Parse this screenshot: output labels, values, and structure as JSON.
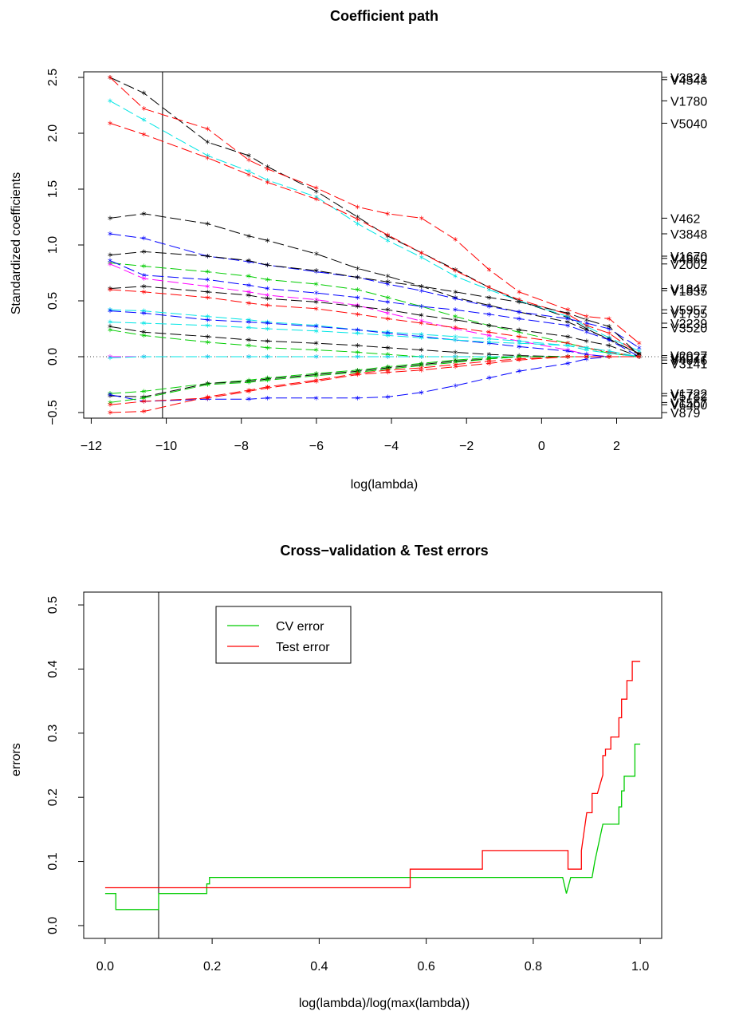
{
  "chart_data": [
    {
      "type": "line",
      "title": "Coefficient path",
      "xlabel": "log(lambda)",
      "ylabel": "Standardized coefficients",
      "xlim": [
        -12.2,
        3.2
      ],
      "ylim": [
        -0.55,
        2.55
      ],
      "xticks": [
        "−12",
        "−10",
        "−8",
        "−6",
        "−4",
        "−2",
        "0",
        "2"
      ],
      "xtick_values": [
        -12,
        -10,
        -8,
        -6,
        -4,
        -2,
        0,
        2
      ],
      "yticks": [
        "−0.5",
        "0.0",
        "0.5",
        "1.0",
        "1.5",
        "2.0",
        "2.5"
      ],
      "ytick_values": [
        -0.5,
        0.0,
        0.5,
        1.0,
        1.5,
        2.0,
        2.5
      ],
      "vline": -10.1,
      "zero_line": true,
      "x": [
        -11.5,
        -10.6,
        -8.9,
        -7.8,
        -7.3,
        -6.0,
        -4.9,
        -4.1,
        -3.2,
        -2.3,
        -1.4,
        -0.6,
        0.7,
        1.2,
        1.8,
        2.6
      ],
      "right_labels": [
        {
          "text": "V3321",
          "y": 2.5
        },
        {
          "text": "V4548",
          "y": 2.48
        },
        {
          "text": "V1780",
          "y": 2.29
        },
        {
          "text": "V5040",
          "y": 2.09
        },
        {
          "text": "V462",
          "y": 1.24
        },
        {
          "text": "V3848",
          "y": 1.1
        },
        {
          "text": "V1670",
          "y": 0.9
        },
        {
          "text": "V4860",
          "y": 0.88
        },
        {
          "text": "V2002",
          "y": 0.83
        },
        {
          "text": "V1847",
          "y": 0.61
        },
        {
          "text": "V1835",
          "y": 0.59
        },
        {
          "text": "V5957",
          "y": 0.42
        },
        {
          "text": "V1795",
          "y": 0.39
        },
        {
          "text": "V2239",
          "y": 0.3
        },
        {
          "text": "V3520",
          "y": 0.26
        },
        {
          "text": "V2027",
          "y": 0.01
        },
        {
          "text": "V5077",
          "y": -0.01
        },
        {
          "text": "V4046",
          "y": -0.03
        },
        {
          "text": "V3141",
          "y": -0.06
        },
        {
          "text": "V1722",
          "y": -0.33
        },
        {
          "text": "V5782",
          "y": -0.35
        },
        {
          "text": "V1567",
          "y": -0.41
        },
        {
          "text": "V6400",
          "y": -0.43
        },
        {
          "text": "V879",
          "y": -0.5
        }
      ],
      "series": [
        {
          "color": "#000000",
          "values": [
            2.5,
            2.36,
            1.92,
            1.8,
            1.7,
            1.48,
            1.25,
            1.08,
            0.93,
            0.78,
            0.62,
            0.5,
            0.35,
            0.25,
            0.15,
            0.03
          ]
        },
        {
          "color": "#ff0000",
          "values": [
            2.5,
            2.22,
            2.04,
            1.76,
            1.68,
            1.51,
            1.34,
            1.28,
            1.24,
            1.05,
            0.78,
            0.58,
            0.42,
            0.36,
            0.34,
            0.12
          ]
        },
        {
          "color": "#00e5e5",
          "values": [
            2.29,
            2.12,
            1.8,
            1.66,
            1.58,
            1.43,
            1.19,
            1.04,
            0.89,
            0.72,
            0.6,
            0.5,
            0.36,
            0.27,
            0.17,
            0.05
          ]
        },
        {
          "color": "#ff0000",
          "values": [
            2.09,
            1.99,
            1.78,
            1.63,
            1.56,
            1.41,
            1.23,
            1.09,
            0.93,
            0.77,
            0.62,
            0.51,
            0.38,
            0.28,
            0.21,
            0.02
          ]
        },
        {
          "color": "#000000",
          "values": [
            1.24,
            1.28,
            1.19,
            1.08,
            1.04,
            0.92,
            0.79,
            0.72,
            0.63,
            0.53,
            0.46,
            0.4,
            0.31,
            0.24,
            0.16,
            0.02
          ]
        },
        {
          "color": "#0000ff",
          "values": [
            1.1,
            1.06,
            0.9,
            0.85,
            0.82,
            0.76,
            0.71,
            0.65,
            0.59,
            0.52,
            0.45,
            0.4,
            0.34,
            0.3,
            0.25,
            0.08
          ]
        },
        {
          "color": "#000000",
          "values": [
            0.91,
            0.94,
            0.9,
            0.86,
            0.82,
            0.77,
            0.71,
            0.67,
            0.63,
            0.58,
            0.53,
            0.49,
            0.39,
            0.33,
            0.27,
            0.01
          ]
        },
        {
          "color": "#00cc00",
          "values": [
            0.84,
            0.81,
            0.76,
            0.72,
            0.69,
            0.65,
            0.6,
            0.53,
            0.45,
            0.36,
            0.28,
            0.22,
            0.12,
            0.08,
            0.03,
            0.0
          ]
        },
        {
          "color": "#0000ff",
          "values": [
            0.86,
            0.73,
            0.69,
            0.64,
            0.61,
            0.57,
            0.53,
            0.49,
            0.45,
            0.42,
            0.38,
            0.34,
            0.28,
            0.22,
            0.15,
            0.0
          ]
        },
        {
          "color": "#ff00ff",
          "values": [
            0.83,
            0.7,
            0.63,
            0.58,
            0.55,
            0.51,
            0.46,
            0.39,
            0.32,
            0.25,
            0.19,
            0.14,
            0.06,
            0.02,
            0.0,
            0.0
          ]
        },
        {
          "color": "#000000",
          "values": [
            0.61,
            0.63,
            0.58,
            0.55,
            0.52,
            0.49,
            0.45,
            0.42,
            0.37,
            0.33,
            0.28,
            0.24,
            0.18,
            0.14,
            0.1,
            0.0
          ]
        },
        {
          "color": "#ff0000",
          "values": [
            0.6,
            0.58,
            0.53,
            0.48,
            0.46,
            0.43,
            0.38,
            0.34,
            0.3,
            0.26,
            0.22,
            0.18,
            0.12,
            0.08,
            0.04,
            0.0
          ]
        },
        {
          "color": "#00e5e5",
          "values": [
            0.42,
            0.41,
            0.36,
            0.33,
            0.31,
            0.28,
            0.24,
            0.22,
            0.2,
            0.18,
            0.16,
            0.14,
            0.1,
            0.06,
            0.03,
            0.0
          ]
        },
        {
          "color": "#0000ff",
          "values": [
            0.41,
            0.39,
            0.33,
            0.31,
            0.3,
            0.27,
            0.24,
            0.21,
            0.18,
            0.15,
            0.12,
            0.09,
            0.05,
            0.02,
            0.0,
            0.0
          ]
        },
        {
          "color": "#00e5e5",
          "values": [
            0.31,
            0.3,
            0.28,
            0.26,
            0.25,
            0.23,
            0.21,
            0.19,
            0.17,
            0.15,
            0.13,
            0.12,
            0.1,
            0.08,
            0.05,
            0.0
          ]
        },
        {
          "color": "#000000",
          "values": [
            0.27,
            0.22,
            0.18,
            0.15,
            0.14,
            0.12,
            0.1,
            0.08,
            0.06,
            0.04,
            0.02,
            0.01,
            0.0,
            0.0,
            0.0,
            0.0
          ]
        },
        {
          "color": "#00cc00",
          "values": [
            0.24,
            0.19,
            0.13,
            0.1,
            0.08,
            0.06,
            0.04,
            0.02,
            0.0,
            0.0,
            0.0,
            0.0,
            0.0,
            0.0,
            0.0,
            0.0
          ]
        },
        {
          "color": "#ff00ff",
          "values": [
            0.0,
            0.0,
            0.0,
            0.0,
            0.0,
            0.0,
            0.0,
            0.0,
            0.0,
            0.0,
            0.0,
            0.0,
            0.0,
            0.0,
            0.0,
            0.0
          ]
        },
        {
          "color": "#00e5e5",
          "values": [
            -0.01,
            0.0,
            0.0,
            0.0,
            0.0,
            0.0,
            0.0,
            0.0,
            0.0,
            0.0,
            0.0,
            0.0,
            0.0,
            0.0,
            0.0,
            0.0
          ]
        },
        {
          "color": "#00cc00",
          "values": [
            -0.33,
            -0.31,
            -0.24,
            -0.21,
            -0.19,
            -0.15,
            -0.12,
            -0.09,
            -0.06,
            -0.03,
            -0.01,
            0.0,
            0.0,
            0.0,
            0.0,
            0.0
          ]
        },
        {
          "color": "#000000",
          "values": [
            -0.35,
            -0.36,
            -0.24,
            -0.22,
            -0.2,
            -0.16,
            -0.13,
            -0.1,
            -0.07,
            -0.04,
            -0.02,
            0.0,
            0.0,
            0.0,
            0.0,
            0.0
          ]
        },
        {
          "color": "#0000ff",
          "values": [
            -0.34,
            -0.4,
            -0.38,
            -0.38,
            -0.37,
            -0.37,
            -0.37,
            -0.36,
            -0.32,
            -0.26,
            -0.19,
            -0.13,
            -0.06,
            -0.02,
            0.0,
            0.0
          ]
        },
        {
          "color": "#00cc00",
          "values": [
            -0.41,
            -0.37,
            -0.25,
            -0.23,
            -0.21,
            -0.17,
            -0.14,
            -0.11,
            -0.08,
            -0.05,
            -0.02,
            0.0,
            0.0,
            0.0,
            0.0,
            0.0
          ]
        },
        {
          "color": "#ff0000",
          "values": [
            -0.43,
            -0.4,
            -0.37,
            -0.31,
            -0.28,
            -0.22,
            -0.16,
            -0.14,
            -0.12,
            -0.09,
            -0.06,
            -0.03,
            0.0,
            0.0,
            0.0,
            0.0
          ]
        },
        {
          "color": "#ff0000",
          "values": [
            -0.5,
            -0.49,
            -0.36,
            -0.3,
            -0.27,
            -0.21,
            -0.15,
            -0.12,
            -0.1,
            -0.07,
            -0.04,
            -0.02,
            0.0,
            0.0,
            0.0,
            0.0
          ]
        }
      ]
    },
    {
      "type": "line",
      "title": "Cross−validation & Test errors",
      "xlabel": "log(lambda)/log(max(lambda))",
      "ylabel": "errors",
      "xlim": [
        -0.04,
        1.04
      ],
      "ylim": [
        -0.02,
        0.52
      ],
      "xticks": [
        "0.0",
        "0.2",
        "0.4",
        "0.6",
        "0.8",
        "1.0"
      ],
      "xtick_values": [
        0,
        0.2,
        0.4,
        0.6,
        0.8,
        1.0
      ],
      "yticks": [
        "0.0",
        "0.1",
        "0.2",
        "0.3",
        "0.4",
        "0.5"
      ],
      "ytick_values": [
        0,
        0.1,
        0.2,
        0.3,
        0.4,
        0.5
      ],
      "vline": 0.1,
      "legend": "top-left",
      "series": [
        {
          "name": "CV error",
          "color": "#00cc00",
          "x": [
            0.0,
            0.02,
            0.02,
            0.1,
            0.1,
            0.19,
            0.19,
            0.195,
            0.195,
            0.855,
            0.862,
            0.87,
            0.87,
            0.91,
            0.915,
            0.915,
            0.93,
            0.93,
            0.945,
            0.96,
            0.96,
            0.965,
            0.965,
            0.97,
            0.97,
            0.99,
            0.99,
            1.0
          ],
          "values": [
            0.05,
            0.05,
            0.025,
            0.025,
            0.05,
            0.05,
            0.065,
            0.065,
            0.075,
            0.075,
            0.05,
            0.075,
            0.075,
            0.075,
            0.1,
            0.1,
            0.158,
            0.158,
            0.158,
            0.158,
            0.185,
            0.185,
            0.21,
            0.21,
            0.233,
            0.233,
            0.283,
            0.283
          ]
        },
        {
          "name": "Test error",
          "color": "#ff0000",
          "x": [
            0.0,
            0.57,
            0.57,
            0.705,
            0.705,
            0.865,
            0.865,
            0.89,
            0.89,
            0.895,
            0.9,
            0.91,
            0.91,
            0.92,
            0.93,
            0.93,
            0.935,
            0.935,
            0.945,
            0.945,
            0.96,
            0.96,
            0.965,
            0.965,
            0.975,
            0.975,
            0.985,
            0.985,
            1.0
          ],
          "values": [
            0.059,
            0.059,
            0.088,
            0.088,
            0.117,
            0.117,
            0.088,
            0.088,
            0.117,
            0.147,
            0.176,
            0.176,
            0.206,
            0.206,
            0.235,
            0.265,
            0.265,
            0.275,
            0.275,
            0.294,
            0.294,
            0.324,
            0.324,
            0.353,
            0.353,
            0.382,
            0.382,
            0.412,
            0.412
          ]
        }
      ]
    }
  ]
}
